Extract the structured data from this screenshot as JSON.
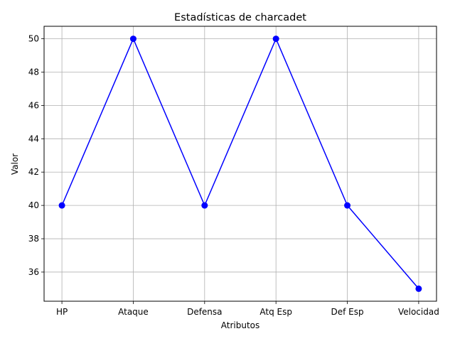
{
  "chart_data": {
    "type": "line",
    "title": "Estadísticas de charcadet",
    "xlabel": "Atributos",
    "ylabel": "Valor",
    "categories": [
      "HP",
      "Ataque",
      "Defensa",
      "Atq Esp",
      "Def Esp",
      "Velocidad"
    ],
    "series": [
      {
        "values": [
          40,
          50,
          40,
          50,
          40,
          35
        ],
        "color": "#0000ff",
        "marker": "circle"
      }
    ],
    "ylim": [
      34.25,
      50.75
    ],
    "yticks": [
      36,
      38,
      40,
      42,
      44,
      46,
      48,
      50
    ],
    "grid": true,
    "line_color": "#0000ff",
    "grid_color": "#b0b0b0"
  }
}
